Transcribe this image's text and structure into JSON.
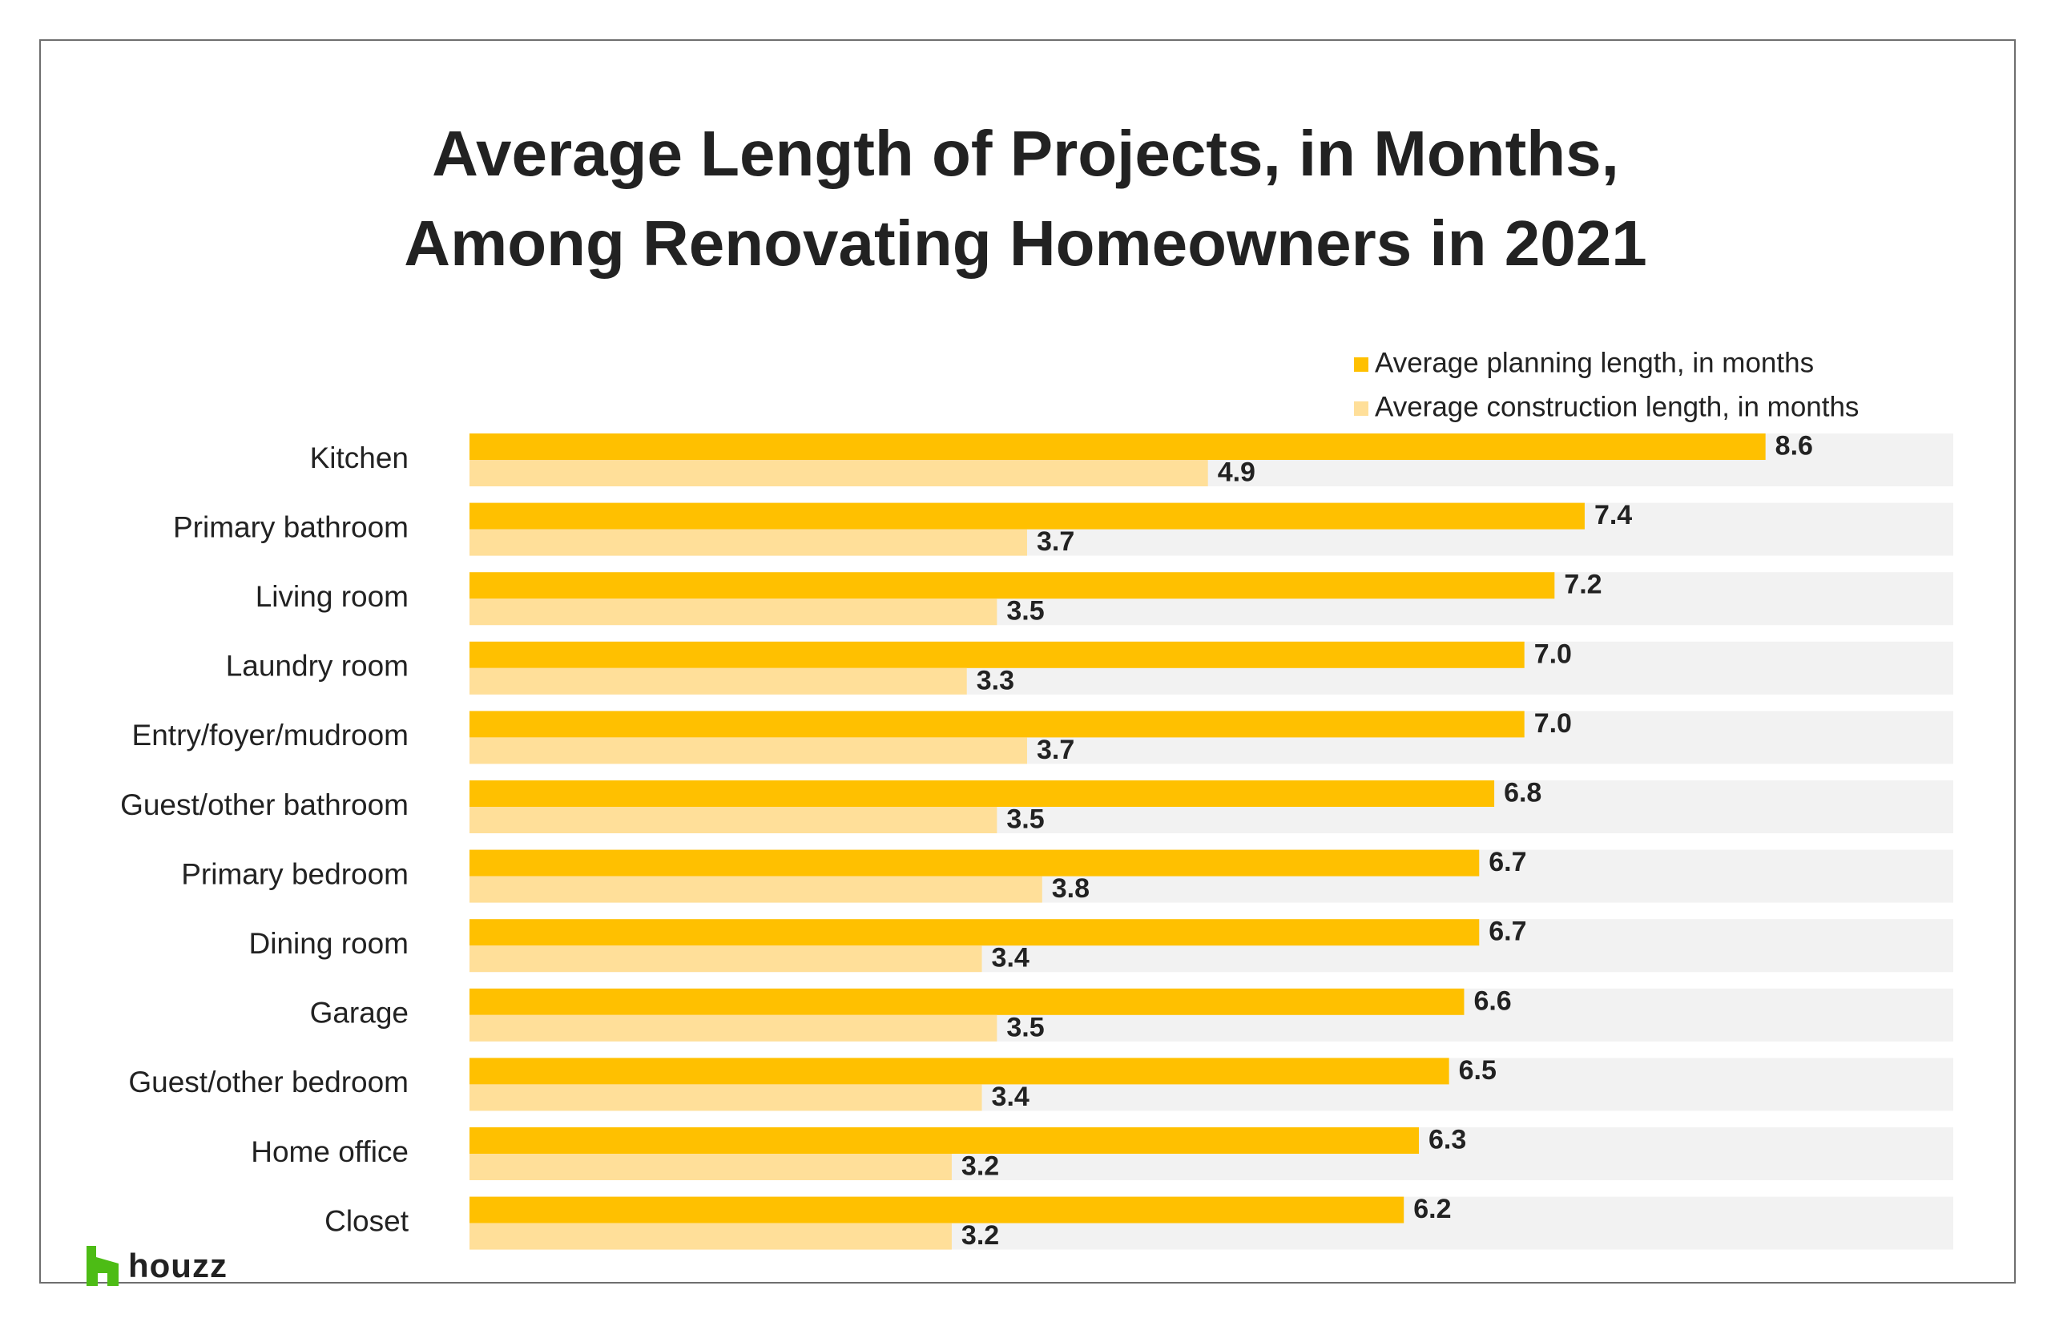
{
  "title_lines": [
    "Average Length of Projects, in Months,",
    "Among Renovating Homeowners in 2021"
  ],
  "colors": {
    "planning": "#FFC000",
    "construction": "#FFDF99",
    "track": "#F2F2F2",
    "text": "#222222",
    "logo_green": "#4DBC15"
  },
  "logo": {
    "text": "houzz",
    "icon": "houzz-logo-icon"
  },
  "chart_data": {
    "type": "bar",
    "orientation": "horizontal",
    "title": "Average Length of Projects, in Months, Among Renovating Homeowners in 2021",
    "categories": [
      "Kitchen",
      "Primary bathroom",
      "Living room",
      "Laundry room",
      "Entry/foyer/mudroom",
      "Guest/other bathroom",
      "Primary bedroom",
      "Dining room",
      "Garage",
      "Guest/other bedroom",
      "Home office",
      "Closet"
    ],
    "series": [
      {
        "name": "Average planning length, in months",
        "values": [
          8.6,
          7.4,
          7.2,
          7.0,
          7.0,
          6.8,
          6.7,
          6.7,
          6.6,
          6.5,
          6.3,
          6.2
        ]
      },
      {
        "name": "Average construction length, in months",
        "values": [
          4.9,
          3.7,
          3.5,
          3.3,
          3.7,
          3.5,
          3.8,
          3.4,
          3.5,
          3.4,
          3.2,
          3.2
        ]
      }
    ],
    "value_labels": [
      [
        "8.6",
        "7.4",
        "7.2",
        "7.0",
        "7.0",
        "6.8",
        "6.7",
        "6.7",
        "6.6",
        "6.5",
        "6.3",
        "6.2"
      ],
      [
        "4.9",
        "3.7",
        "3.5",
        "3.3",
        "3.7",
        "3.5",
        "3.8",
        "3.4",
        "3.5",
        "3.4",
        "3.2",
        "3.2"
      ]
    ],
    "xlim": [
      0,
      9.9
    ],
    "grid": false,
    "legend_position": "top-right"
  }
}
